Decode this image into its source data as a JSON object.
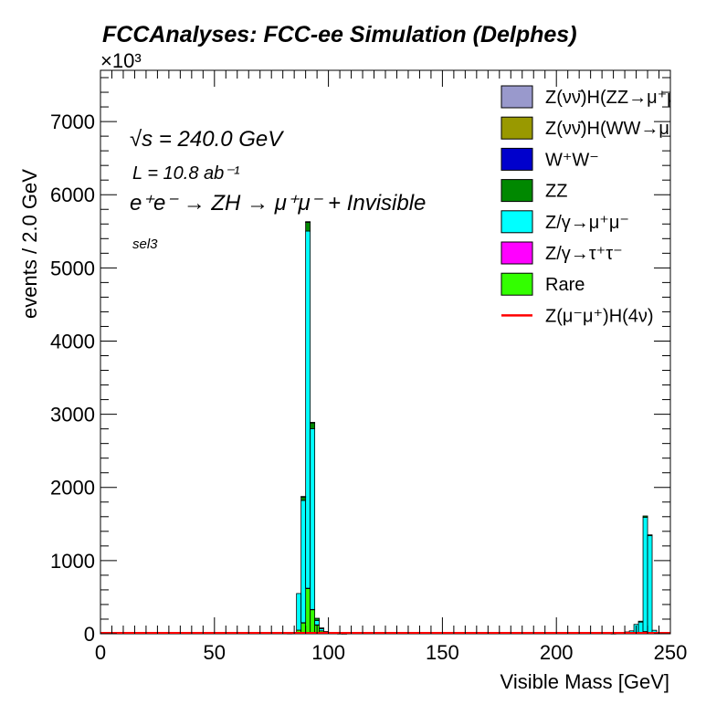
{
  "chart_data": {
    "type": "bar",
    "title": "FCCAnalyses: FCC-ee Simulation (Delphes)",
    "xlabel": "Visible Mass [GeV]",
    "ylabel": "events / 2.0 GeV",
    "y_multiplier": "×10³",
    "xlim": [
      0,
      250
    ],
    "ylim": [
      0,
      7700
    ],
    "xticks": [
      "0",
      "50",
      "100",
      "150",
      "200",
      "250"
    ],
    "yticks": [
      "0",
      "1000",
      "2000",
      "3000",
      "4000",
      "5000",
      "6000",
      "7000"
    ],
    "bin_width": 2.0,
    "stacked": true,
    "annotations": {
      "sqrts": "√s = 240.0 GeV",
      "lumi": "L = 10.8 ab⁻¹",
      "process": "e⁺e⁻ → ZH → μ⁺μ⁻ + Invisible",
      "selection": "sel3"
    },
    "legend_position": "top-right",
    "series": [
      {
        "name": "Rare",
        "color": "#33ff00",
        "bins": [
          [
            86,
            50
          ],
          [
            88,
            150
          ],
          [
            90,
            620
          ],
          [
            92,
            330
          ],
          [
            94,
            120
          ],
          [
            96,
            40
          ],
          [
            98,
            10
          ],
          [
            234,
            8
          ],
          [
            236,
            20
          ],
          [
            238,
            30
          ],
          [
            240,
            20
          ],
          [
            242,
            8
          ]
        ]
      },
      {
        "name": "Z/γ→τ⁺τ⁻",
        "color": "#ff00ff",
        "bins": [
          [
            88,
            2
          ],
          [
            90,
            3
          ],
          [
            92,
            3
          ],
          [
            94,
            2
          ]
        ]
      },
      {
        "name": "Z/γ→μ⁺μ⁻",
        "color": "#00ffff",
        "bins": [
          [
            82,
            4
          ],
          [
            84,
            10
          ],
          [
            86,
            500
          ],
          [
            88,
            1670
          ],
          [
            90,
            4880
          ],
          [
            92,
            2470
          ],
          [
            94,
            60
          ],
          [
            96,
            30
          ],
          [
            98,
            20
          ],
          [
            100,
            10
          ],
          [
            102,
            5
          ],
          [
            104,
            3
          ],
          [
            106,
            2
          ],
          [
            224,
            3
          ],
          [
            226,
            6
          ],
          [
            228,
            10
          ],
          [
            230,
            25
          ],
          [
            232,
            40
          ],
          [
            234,
            120
          ],
          [
            236,
            140
          ],
          [
            238,
            1560
          ],
          [
            240,
            1320
          ],
          [
            242,
            40
          ]
        ]
      },
      {
        "name": "ZZ",
        "color": "#008800",
        "bins": [
          [
            88,
            50
          ],
          [
            90,
            120
          ],
          [
            92,
            80
          ],
          [
            94,
            30
          ],
          [
            96,
            10
          ],
          [
            236,
            12
          ],
          [
            238,
            20
          ],
          [
            240,
            12
          ]
        ]
      },
      {
        "name": "W⁺W⁻",
        "color": "#0000cc",
        "bins": []
      },
      {
        "name": "Z(νν̄)H(WW→μ⁺νμ⁻ν̄)",
        "color": "#999900",
        "bins": [
          [
            88,
            2
          ],
          [
            90,
            4
          ],
          [
            92,
            3
          ]
        ]
      },
      {
        "name": "Z(νν̄)H(ZZ→μ⁺μ⁻νν̄)",
        "color": "#9999cc",
        "bins": [
          [
            88,
            2
          ],
          [
            90,
            5
          ],
          [
            92,
            3
          ]
        ]
      }
    ],
    "line_series": [
      {
        "name": "Z(μ⁻μ⁺)H(4ν)",
        "color": "#ff0000",
        "value": 0
      }
    ],
    "legend": [
      {
        "label": "Z(νν̄)H(ZZ→μ⁺μ⁻νν̄)",
        "color": "#9999cc",
        "kind": "box"
      },
      {
        "label": "Z(νν̄)H(WW→μ⁺νμ⁻ν̄)",
        "color": "#999900",
        "kind": "box"
      },
      {
        "label": "W⁺W⁻",
        "color": "#0000cc",
        "kind": "box"
      },
      {
        "label": "ZZ",
        "color": "#008800",
        "kind": "box"
      },
      {
        "label": "Z/γ→μ⁺μ⁻",
        "color": "#00ffff",
        "kind": "box"
      },
      {
        "label": "Z/γ→τ⁺τ⁻",
        "color": "#ff00ff",
        "kind": "box"
      },
      {
        "label": "Rare",
        "color": "#33ff00",
        "kind": "box"
      },
      {
        "label": "Z(μ⁻μ⁺)H(4ν)",
        "color": "#ff0000",
        "kind": "line"
      }
    ]
  }
}
